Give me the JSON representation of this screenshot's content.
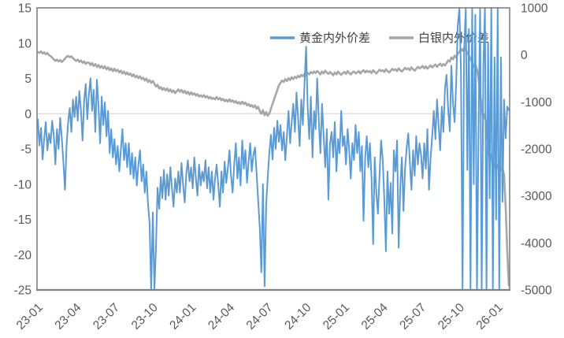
{
  "chart_data": {
    "type": "line",
    "title": "",
    "xlabel": "",
    "ylabel_left": "",
    "ylabel_right": "",
    "grid": "single horizontal gridline at left-axis 0",
    "legend_position": "top-inside",
    "x_start": "23-01",
    "x_end": "26-01",
    "x_tick_labels": [
      "23-01",
      "23-04",
      "23-07",
      "23-10",
      "24-01",
      "24-04",
      "24-07",
      "24-10",
      "25-01",
      "25-04",
      "25-07",
      "25-10",
      "26-01"
    ],
    "left_axis": {
      "min": -25,
      "max": 15,
      "ticks": [
        15,
        10,
        5,
        0,
        -5,
        -10,
        -15,
        -20,
        -25
      ]
    },
    "right_axis": {
      "min": -5000,
      "max": 1000,
      "ticks": [
        1000,
        0,
        -1000,
        -2000,
        -3000,
        -4000,
        -5000
      ]
    },
    "series": [
      {
        "name": "黄金内外价差",
        "axis": "left",
        "color": "#5B9BD5",
        "values": [
          -0.8,
          -4.5,
          -2.0,
          -6.5,
          -3.5,
          -1.2,
          -5.2,
          -2.8,
          -4.2,
          -1.0,
          -3.1,
          -7.2,
          -2.2,
          -5.0,
          -0.6,
          -3.4,
          -6.8,
          -10.8,
          -4.5,
          -1.2,
          0.8,
          -2.6,
          2.0,
          -0.5,
          2.4,
          -1.0,
          3.2,
          0.6,
          -3.8,
          1.8,
          4.2,
          -0.8,
          2.8,
          5.0,
          0.4,
          3.4,
          -2.6,
          4.8,
          1.2,
          -4.2,
          2.4,
          -1.6,
          1.6,
          -3.2,
          0.4,
          -5.6,
          -2.2,
          -6.2,
          -3.6,
          -7.2,
          -4.6,
          -8.2,
          -5.2,
          -2.2,
          -6.6,
          -4.2,
          -7.6,
          -4.2,
          -8.6,
          -5.6,
          -9.2,
          -6.2,
          -10.2,
          -7.2,
          -5.2,
          -9.6,
          -7.2,
          -11.2,
          -8.2,
          -12.8,
          -15.5,
          -25.0,
          -14.0,
          -25.0,
          -19.0,
          -10.5,
          -13.5,
          -9.0,
          -12.0,
          -8.0,
          -12.2,
          -8.6,
          -11.6,
          -7.6,
          -10.6,
          -13.2,
          -9.2,
          -11.2,
          -8.2,
          -11.2,
          -7.0,
          -10.2,
          -12.6,
          -8.6,
          -6.6,
          -9.6,
          -7.6,
          -10.6,
          -6.2,
          -9.2,
          -11.6,
          -7.2,
          -10.2,
          -8.2,
          -9.6,
          -6.6,
          -10.6,
          -7.6,
          -11.2,
          -8.2,
          -12.2,
          -9.2,
          -7.2,
          -10.2,
          -13.2,
          -8.2,
          -11.2,
          -6.8,
          -9.8,
          -7.8,
          -5.2,
          -8.8,
          -11.2,
          -7.2,
          -4.2,
          -9.2,
          -6.2,
          -10.2,
          -3.8,
          -7.8,
          -5.2,
          -9.8,
          -6.8,
          -4.2,
          -8.2,
          -5.8,
          -4.8,
          -8.4,
          -12.2,
          -16.2,
          -22.5,
          -10.0,
          -24.5,
          -13.0,
          -9.0,
          -5.5,
          -3.0,
          -6.5,
          -2.0,
          -5.0,
          -1.0,
          -4.0,
          -1.6,
          -5.2,
          -2.6,
          -6.6,
          -3.2,
          0.4,
          -4.2,
          -1.2,
          1.4,
          -2.6,
          3.0,
          -0.6,
          -4.6,
          2.0,
          -1.6,
          4.0,
          9.5,
          1.0,
          -3.6,
          2.4,
          -6.2,
          0.4,
          -2.2,
          5.0,
          -1.2,
          -5.6,
          1.4,
          -3.2,
          -7.6,
          -2.2,
          -12.2,
          -4.2,
          -2.6,
          -6.2,
          -1.2,
          -8.2,
          -3.6,
          -5.6,
          0.4,
          -4.6,
          -3.2,
          -7.2,
          -2.2,
          -5.2,
          -9.2,
          -4.2,
          -6.6,
          -1.6,
          -5.6,
          -2.6,
          -8.2,
          -4.6,
          -15.2,
          -6.2,
          -3.2,
          -7.6,
          -4.2,
          -9.2,
          -18.5,
          -6.2,
          -11.2,
          -14.2,
          -8.8,
          -3.8,
          -6.6,
          -12.2,
          -19.5,
          -8.2,
          -14.2,
          -9.8,
          -17.0,
          -5.2,
          -8.2,
          -3.8,
          -19.0,
          -10.2,
          -6.2,
          -13.8,
          -7.8,
          -4.8,
          -2.8,
          -6.8,
          -10.8,
          -5.2,
          -8.8,
          -3.2,
          -7.2,
          -4.2,
          -5.8,
          -9.2,
          -4.2,
          -7.8,
          -2.2,
          -10.8,
          -6.2,
          -3.2,
          0.4,
          -3.6,
          2.0,
          -1.6,
          -5.2,
          1.0,
          -2.6,
          3.6,
          5.5,
          0.5,
          -2.5,
          6.8,
          1.5,
          -1.2,
          4.2,
          12.5,
          15.0,
          6.0,
          -25.0,
          9.0,
          15.0,
          -8.0,
          12.0,
          -25.0,
          15.0,
          -10.0,
          14.0,
          -25.0,
          -2.0,
          15.0,
          -25.0,
          6.5,
          15.0,
          -25.0,
          10.0,
          -12.0,
          15.0,
          -25.0,
          8.0,
          -15.0,
          15.0,
          -25.0,
          8.0,
          -12.5,
          2.0,
          -3.5,
          1.0,
          0.5
        ]
      },
      {
        "name": "白银内外价差",
        "axis": "right",
        "color": "#A6A6A6",
        "values": [
          60,
          45,
          75,
          30,
          55,
          15,
          40,
          -5,
          -25,
          -60,
          -95,
          -130,
          -100,
          -140,
          -110,
          -150,
          -120,
          -80,
          -40,
          -20,
          -50,
          -30,
          -70,
          -100,
          -130,
          -100,
          -150,
          -120,
          -170,
          -140,
          -190,
          -160,
          -165,
          -215,
          -175,
          -235,
          -195,
          -255,
          -215,
          -275,
          -235,
          -285,
          -245,
          -305,
          -265,
          -325,
          -285,
          -345,
          -295,
          -345,
          -315,
          -375,
          -335,
          -395,
          -355,
          -415,
          -375,
          -425,
          -395,
          -455,
          -415,
          -475,
          -445,
          -495,
          -455,
          -515,
          -485,
          -545,
          -505,
          -575,
          -535,
          -595,
          -555,
          -615,
          -675,
          -635,
          -715,
          -685,
          -745,
          -705,
          -755,
          -715,
          -775,
          -735,
          -795,
          -755,
          -815,
          -775,
          -735,
          -785,
          -745,
          -805,
          -765,
          -825,
          -785,
          -845,
          -795,
          -845,
          -815,
          -865,
          -835,
          -885,
          -855,
          -895,
          -855,
          -905,
          -875,
          -925,
          -895,
          -935,
          -915,
          -945,
          -895,
          -945,
          -915,
          -965,
          -935,
          -985,
          -955,
          -995,
          -945,
          -995,
          -965,
          -1015,
          -985,
          -1035,
          -1005,
          -1045,
          -995,
          -1045,
          -1015,
          -1075,
          -1045,
          -1095,
          -1065,
          -1115,
          -1075,
          -1145,
          -1105,
          -1195,
          -1255,
          -1175,
          -1285,
          -1215,
          -1295,
          -1245,
          -1145,
          -1045,
          -945,
          -845,
          -745,
          -645,
          -595,
          -545,
          -575,
          -515,
          -555,
          -495,
          -535,
          -475,
          -515,
          -465,
          -495,
          -445,
          -475,
          -425,
          -455,
          -405,
          -435,
          -385,
          -415,
          -365,
          -395,
          -355,
          -385,
          -345,
          -375,
          -415,
          -355,
          -395,
          -335,
          -375,
          -405,
          -365,
          -395,
          -435,
          -375,
          -415,
          -355,
          -395,
          -425,
          -385,
          -365,
          -405,
          -345,
          -385,
          -415,
          -375,
          -355,
          -395,
          -375,
          -345,
          -395,
          -355,
          -325,
          -375,
          -335,
          -365,
          -345,
          -385,
          -325,
          -365,
          -395,
          -355,
          -315,
          -345,
          -325,
          -365,
          -305,
          -345,
          -375,
          -335,
          -295,
          -325,
          -305,
          -345,
          -285,
          -325,
          -355,
          -315,
          -275,
          -305,
          -285,
          -325,
          -265,
          -305,
          -335,
          -295,
          -255,
          -285,
          -265,
          -235,
          -285,
          -245,
          -295,
          -255,
          -225,
          -265,
          -235,
          -205,
          -255,
          -215,
          -185,
          -235,
          -195,
          -225,
          -175,
          -115,
          -145,
          -55,
          -95,
          -15,
          -55,
          25,
          65,
          125,
          85,
          150,
          100,
          45,
          -15,
          -85,
          -155,
          -255,
          -205,
          -305,
          -505,
          -805,
          -1105,
          -1355,
          -1255,
          -1555,
          -1905,
          -2255,
          -2105,
          -2405,
          -2305,
          -2455,
          -2355,
          -2305,
          -2455,
          -2405,
          -2555,
          -3205,
          -4205,
          -4905
        ]
      }
    ]
  },
  "legend": {
    "gold_label": "黄金内外价差",
    "silver_label": "白银内外价差"
  },
  "colors": {
    "gold_line": "#5B9BD5",
    "silver_line": "#A6A6A6",
    "gridline": "#D9D9D9",
    "plot_border": "#808080",
    "tick_text": "#595959",
    "legend_text": "#404040",
    "background": "#FFFFFF"
  }
}
